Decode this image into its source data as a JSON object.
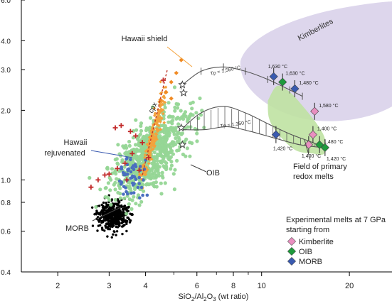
{
  "chart_data": {
    "type": "scatter",
    "title": "",
    "xlabel": "SiO2/Al2O3 (wt ratio)",
    "ylabel": "",
    "x_scale": "log",
    "y_scale": "log",
    "xlim": [
      1.5,
      28
    ],
    "ylim": [
      0.4,
      6.0
    ],
    "grid": false,
    "x_ticks": [
      {
        "value": 2,
        "label": "2"
      },
      {
        "value": 3,
        "label": "3"
      },
      {
        "value": 4,
        "label": "4"
      },
      {
        "value": 6,
        "label": "6"
      },
      {
        "value": 8,
        "label": "8"
      },
      {
        "value": 10,
        "label": "10"
      },
      {
        "value": 20,
        "label": "20"
      }
    ],
    "y_ticks": [
      {
        "value": 0.4,
        "label": "0.4"
      },
      {
        "value": 0.6,
        "label": "0.6"
      },
      {
        "value": 0.8,
        "label": "0.8"
      },
      {
        "value": 1.0,
        "label": "1.0"
      },
      {
        "value": 2.0,
        "label": "2.0"
      },
      {
        "value": 3.0,
        "label": "3.0"
      },
      {
        "value": 4.0,
        "label": "4.0"
      },
      {
        "value": 6.0,
        "label": "6.0"
      }
    ],
    "fields": [
      {
        "name": "MORB",
        "color": "#000000",
        "center": [
          3.1,
          0.7
        ],
        "spread": [
          0.06,
          0.07
        ],
        "n": 420
      },
      {
        "name": "OIB",
        "color": "#95d695",
        "center": [
          4.2,
          1.3
        ],
        "spread": [
          0.1,
          0.16
        ],
        "n": 700
      },
      {
        "name": "Hawaii shield",
        "color": "#f3a23c",
        "center": [
          4.25,
          1.55
        ],
        "spread": [
          0.04,
          0.1
        ],
        "n": 190
      },
      {
        "name": "Hawaii rejuvenated",
        "color": "#4a6fc0",
        "center": [
          3.6,
          1.05
        ],
        "spread": [
          0.05,
          0.1
        ],
        "n": 55
      }
    ],
    "hawaii_shield_diamonds": [
      [
        5.3,
        3.3
      ],
      [
        5.1,
        2.9
      ],
      [
        4.9,
        2.65
      ],
      [
        4.7,
        2.4
      ],
      [
        4.5,
        2.22
      ],
      [
        4.9,
        2.25
      ]
    ],
    "hawaii_rejuvenated_crosses": [
      [
        2.6,
        0.93
      ],
      [
        2.75,
        1.0
      ],
      [
        2.9,
        1.05
      ],
      [
        3.2,
        1.12
      ],
      [
        3.0,
        1.06
      ],
      [
        3.4,
        1.18
      ],
      [
        3.6,
        1.3
      ],
      [
        3.7,
        1.55
      ],
      [
        3.9,
        1.45
      ],
      [
        3.3,
        1.72
      ],
      [
        3.15,
        1.68
      ],
      [
        3.55,
        1.62
      ],
      [
        4.6,
        2.7
      ],
      [
        3.8,
        1.1
      ],
      [
        3.45,
        1.0
      ],
      [
        4.1,
        1.25
      ]
    ],
    "cpx_line": [
      [
        3.9,
        1.05
      ],
      [
        4.75,
        3.0
      ]
    ],
    "tp_curves": [
      {
        "label": "Tp = 1,560 °C",
        "points": [
          [
            5.3,
            2.55
          ],
          [
            6.2,
            2.95
          ],
          [
            7.4,
            3.08
          ],
          [
            8.8,
            2.95
          ],
          [
            10.5,
            2.72
          ],
          [
            12.5,
            2.45
          ],
          [
            13.8,
            2.3
          ]
        ]
      },
      {
        "label": "Tp = 1,350 °C",
        "points": [
          [
            5.3,
            1.65
          ],
          [
            6.2,
            1.95
          ],
          [
            7.4,
            2.08
          ],
          [
            8.8,
            1.95
          ],
          [
            10.5,
            1.75
          ],
          [
            12.5,
            1.58
          ],
          [
            15.0,
            1.45
          ],
          [
            16.3,
            1.38
          ]
        ]
      },
      {
        "label": "",
        "points": [
          [
            5.3,
            1.65
          ],
          [
            6.4,
            1.65
          ],
          [
            7.6,
            1.7
          ],
          [
            9.0,
            1.63
          ],
          [
            11.0,
            1.52
          ],
          [
            13.5,
            1.42
          ],
          [
            16.3,
            1.38
          ]
        ]
      }
    ],
    "stars": [
      [
        5.35,
        2.58
      ],
      [
        5.4,
        2.38
      ],
      [
        5.3,
        1.68
      ],
      [
        5.35,
        1.42
      ]
    ],
    "kimberlite_field_label": "Kimberlites",
    "primary_redox_field": [
      [
        10.5,
        2.2
      ],
      [
        11.3,
        2.55
      ],
      [
        12.5,
        2.4
      ],
      [
        14.0,
        2.05
      ],
      [
        15.6,
        1.72
      ],
      [
        16.5,
        1.5
      ],
      [
        16.4,
        1.3
      ],
      [
        15.0,
        1.3
      ],
      [
        13.0,
        1.35
      ],
      [
        11.3,
        1.6
      ],
      [
        10.6,
        1.85
      ]
    ],
    "experimental_melts": [
      {
        "starting": "Kimberlite",
        "x": 15.2,
        "y": 1.98,
        "label": "1,580 °C"
      },
      {
        "starting": "Kimberlite",
        "x": 15.0,
        "y": 1.57,
        "label": "1,400 °C"
      },
      {
        "starting": "Kimberlite",
        "x": 14.5,
        "y": 1.42,
        "label": "1,400 °C"
      },
      {
        "starting": "OIB",
        "x": 11.8,
        "y": 2.65,
        "label": "1,630 °C"
      },
      {
        "starting": "OIB",
        "x": 15.8,
        "y": 1.42,
        "label": "1,480 °C"
      },
      {
        "starting": "OIB",
        "x": 16.5,
        "y": 1.38,
        "label": "1,420 °C"
      },
      {
        "starting": "MORB",
        "x": 11.0,
        "y": 2.8,
        "label": "1,630 °C"
      },
      {
        "starting": "MORB",
        "x": 13.0,
        "y": 2.48,
        "label": "1,480 °C"
      },
      {
        "starting": "MORB",
        "x": 11.2,
        "y": 1.57,
        "label": "1,420 °C"
      }
    ],
    "annotations": {
      "hawaii_shield": "Hawaii shield",
      "hawaii_rejuvenated_1": "Hawaii",
      "hawaii_rejuvenated_2": "rejuvenated",
      "oib": "OIB",
      "morb": "MORB",
      "cpx": "cpx",
      "tp_high": "Tp = 1,560 °C",
      "tp_low": "Tp = 1,350 °C",
      "redox_1": "Field of primary",
      "redox_2": "redox melts"
    },
    "legend": {
      "position": "bottom-right",
      "title_1": "Experimental melts at 7 GPa",
      "title_2": "starting from",
      "entries": [
        {
          "name": "Kimberlite",
          "color": "#e98fc0"
        },
        {
          "name": "OIB",
          "color": "#1e9a3c"
        },
        {
          "name": "MORB",
          "color": "#3a5ab0"
        }
      ]
    },
    "colors": {
      "kimberlite_field": "#ddd6ec",
      "redox_field": "#bfe2a2",
      "tp_curve": "#555555",
      "cpx_line": "#c0392b",
      "cross": "#c22a2a",
      "diamond": "#f08a24",
      "axis": "#000000"
    }
  }
}
